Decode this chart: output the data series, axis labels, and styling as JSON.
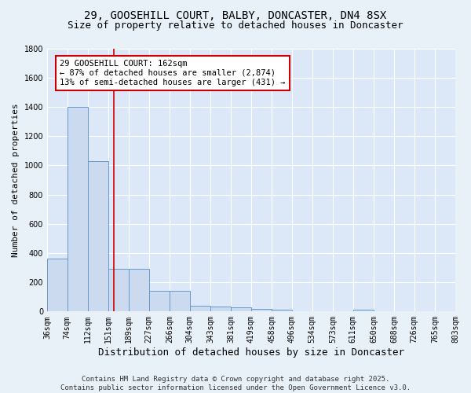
{
  "title1": "29, GOOSEHILL COURT, BALBY, DONCASTER, DN4 8SX",
  "title2": "Size of property relative to detached houses in Doncaster",
  "xlabel": "Distribution of detached houses by size in Doncaster",
  "ylabel": "Number of detached properties",
  "bar_color": "#ccdaf0",
  "bar_edge_color": "#6699cc",
  "background_color": "#dce8f8",
  "fig_background_color": "#e8f0f8",
  "grid_color": "#ffffff",
  "bin_labels": [
    "36sqm",
    "74sqm",
    "112sqm",
    "151sqm",
    "189sqm",
    "227sqm",
    "266sqm",
    "304sqm",
    "343sqm",
    "381sqm",
    "419sqm",
    "458sqm",
    "496sqm",
    "534sqm",
    "573sqm",
    "611sqm",
    "650sqm",
    "688sqm",
    "726sqm",
    "765sqm",
    "803sqm"
  ],
  "bin_edges": [
    36,
    74,
    112,
    151,
    189,
    227,
    266,
    304,
    343,
    381,
    419,
    458,
    496,
    534,
    573,
    611,
    650,
    688,
    726,
    765,
    803
  ],
  "bar_heights": [
    360,
    1400,
    1030,
    290,
    290,
    140,
    140,
    40,
    35,
    30,
    20,
    15,
    0,
    0,
    0,
    15,
    0,
    0,
    0,
    0
  ],
  "property_size": 162,
  "red_line_color": "#cc0000",
  "annotation_text": "29 GOOSEHILL COURT: 162sqm\n← 87% of detached houses are smaller (2,874)\n13% of semi-detached houses are larger (431) →",
  "annotation_box_color": "#ffffff",
  "annotation_box_edge_color": "#cc0000",
  "ylim": [
    0,
    1800
  ],
  "yticks": [
    0,
    200,
    400,
    600,
    800,
    1000,
    1200,
    1400,
    1600,
    1800
  ],
  "footnote": "Contains HM Land Registry data © Crown copyright and database right 2025.\nContains public sector information licensed under the Open Government Licence v3.0.",
  "title_fontsize": 10,
  "subtitle_fontsize": 9,
  "xlabel_fontsize": 9,
  "ylabel_fontsize": 8,
  "tick_fontsize": 7,
  "annotation_fontsize": 7.5,
  "footnote_fontsize": 6.5
}
